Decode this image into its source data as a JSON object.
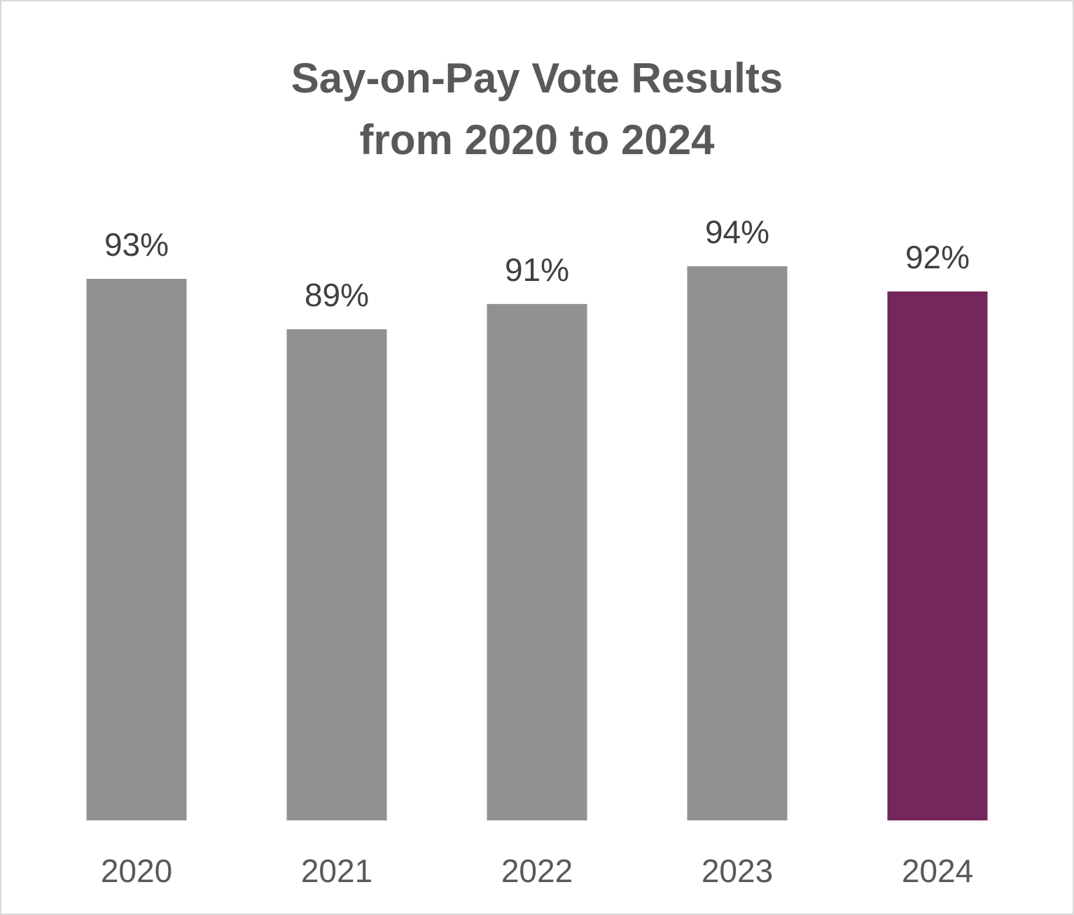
{
  "chart_data": {
    "type": "bar",
    "title_lines": [
      "Say-on-Pay Vote Results",
      "from 2020 to 2024"
    ],
    "categories": [
      "2020",
      "2021",
      "2022",
      "2023",
      "2024"
    ],
    "values": [
      93,
      89,
      91,
      94,
      92
    ],
    "data_labels": [
      "93%",
      "89%",
      "91%",
      "94%",
      "92%"
    ],
    "value_unit": "%",
    "ylim": [
      50,
      94
    ],
    "grid": false,
    "legend": "none",
    "colors": {
      "bar": "#919191",
      "highlight": "#74275a",
      "highlight_category": "2024"
    }
  }
}
